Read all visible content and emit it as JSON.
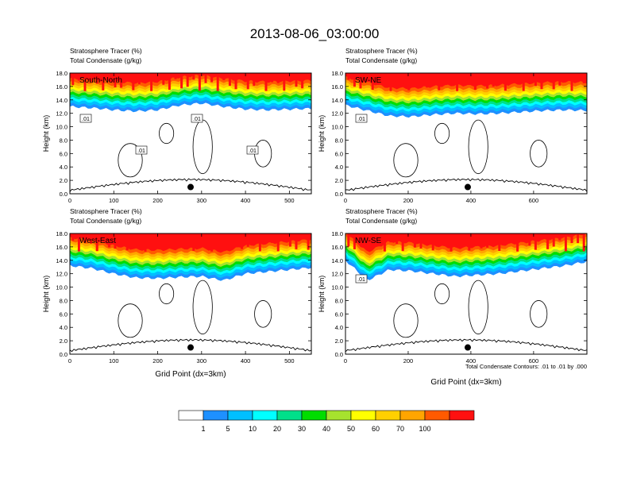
{
  "figure": {
    "title": "2013-08-06_03:00:00",
    "contour_note": "Total Condensate Contours: .01 to .01 by .000"
  },
  "colorbar": {
    "labels": [
      "1",
      "5",
      "10",
      "20",
      "30",
      "40",
      "50",
      "60",
      "70",
      "100"
    ],
    "colors": [
      "#ffffff",
      "#1e90ff",
      "#00bfff",
      "#00ffff",
      "#00e08a",
      "#00dd00",
      "#a6e22e",
      "#ffff00",
      "#ffd000",
      "#ffa500",
      "#ff5a00",
      "#ff1010"
    ]
  },
  "chart_data": [
    {
      "type": "heatmap",
      "panel": "South-North",
      "header_line1": "Stratosphere Tracer   (%)",
      "header_line2": "Total Condensate   (g/kg)",
      "ylabel": "Height (km)",
      "xlabel": "",
      "xlim": [
        0,
        550
      ],
      "ylim": [
        0,
        18
      ],
      "xticks": [
        "0",
        "100",
        "200",
        "300",
        "400",
        "500"
      ],
      "xtick_values": [
        0,
        100,
        200,
        300,
        400,
        500
      ],
      "yticks": [
        "0.0",
        "2.0",
        "4.0",
        "6.0",
        "8.0",
        "10.0",
        "12.0",
        "14.0",
        "16.0",
        "18.0"
      ],
      "tracer_base_km": [
        13.0,
        12.8,
        12.5,
        12.3,
        12.5,
        13.2,
        13.5,
        13.0,
        12.6,
        12.5,
        12.6,
        12.7
      ],
      "contour_labels": [
        ".01",
        ".01",
        ".01",
        ".01"
      ],
      "marker": {
        "x": 275,
        "y": 1.0
      }
    },
    {
      "type": "heatmap",
      "panel": "SW-NE",
      "header_line1": "Stratosphere Tracer   (%)",
      "header_line2": "Total Condensate   (g/kg)",
      "ylabel": "Height (km)",
      "xlabel": "",
      "xlim": [
        0,
        770
      ],
      "ylim": [
        0,
        18
      ],
      "xticks": [
        "0",
        "200",
        "400",
        "600"
      ],
      "xtick_values": [
        0,
        200,
        400,
        600
      ],
      "yticks": [
        "0.0",
        "2.0",
        "4.0",
        "6.0",
        "8.0",
        "10.0",
        "12.0",
        "14.0",
        "16.0",
        "18.0"
      ],
      "tracer_base_km": [
        13.2,
        12.4,
        11.6,
        11.5,
        11.8,
        12.0,
        11.9,
        12.0,
        12.2,
        12.4,
        12.5,
        12.4
      ],
      "contour_labels": [
        ".01"
      ],
      "marker": {
        "x": 390,
        "y": 1.0
      }
    },
    {
      "type": "heatmap",
      "panel": "West-East",
      "header_line1": "Stratosphere Tracer   (%)",
      "header_line2": "Total Condensate   (g/kg)",
      "ylabel": "Height (km)",
      "xlabel": "Grid Point (dx=3km)",
      "xlim": [
        0,
        550
      ],
      "ylim": [
        0,
        18
      ],
      "xticks": [
        "0",
        "100",
        "200",
        "300",
        "400",
        "500"
      ],
      "xtick_values": [
        0,
        100,
        200,
        300,
        400,
        500
      ],
      "yticks": [
        "0.0",
        "2.0",
        "4.0",
        "6.0",
        "8.0",
        "10.0",
        "12.0",
        "14.0",
        "16.0",
        "18.0"
      ],
      "tracer_base_km": [
        13.2,
        12.8,
        12.0,
        11.4,
        11.3,
        11.5,
        11.6,
        11.0,
        12.0,
        12.3,
        12.6,
        12.9
      ],
      "contour_labels": [],
      "marker": {
        "x": 275,
        "y": 1.0
      }
    },
    {
      "type": "heatmap",
      "panel": "NW-SE",
      "header_line1": "Stratosphere Tracer   (%)",
      "header_line2": "Total Condensate   (g/kg)",
      "ylabel": "Height (km)",
      "xlabel": "Grid Point (dx=3km)",
      "xlim": [
        0,
        770
      ],
      "ylim": [
        0,
        18
      ],
      "xticks": [
        "0",
        "200",
        "400",
        "600"
      ],
      "xtick_values": [
        0,
        200,
        400,
        600
      ],
      "yticks": [
        "0.0",
        "2.0",
        "4.0",
        "6.0",
        "8.0",
        "10.0",
        "12.0",
        "14.0",
        "16.0",
        "18.0"
      ],
      "tracer_base_km": [
        14.0,
        11.0,
        12.6,
        12.4,
        12.0,
        11.6,
        11.8,
        12.0,
        12.4,
        12.8,
        13.2,
        13.8
      ],
      "contour_labels": [
        ".01"
      ],
      "marker": {
        "x": 390,
        "y": 1.0
      }
    }
  ]
}
